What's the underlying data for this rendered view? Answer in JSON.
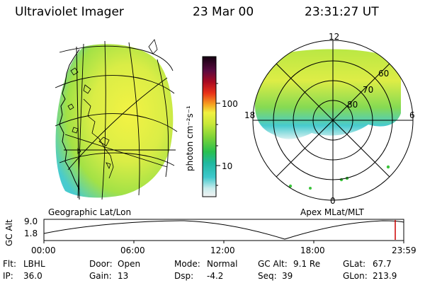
{
  "header": {
    "instrument": "Ultraviolet Imager",
    "date": "23 Mar 00",
    "time": "23:31:27 UT"
  },
  "colorbar": {
    "unit_label": "photon cm⁻²s⁻¹",
    "tick_labels": [
      "100",
      "10"
    ],
    "scale": "log"
  },
  "geographic_panel": {
    "caption": "Geographic Lat/Lon"
  },
  "apex_panel": {
    "caption": "Apex MLat/MLT",
    "mlt_labels": {
      "top": "12",
      "left": "18",
      "right": "6",
      "bottom": "0"
    },
    "mlat_labels": [
      "60",
      "70",
      "80"
    ]
  },
  "altitude_plot": {
    "ylabel": "GC Alt",
    "yticks": [
      "9.0",
      "1.8"
    ],
    "xticks": [
      "00:00",
      "06:00",
      "12:00",
      "18:00",
      "23:59"
    ]
  },
  "status": {
    "row1": [
      {
        "label": "Flt:",
        "value": "LBHL"
      },
      {
        "label": "Door:",
        "value": "Open"
      },
      {
        "label": "Mode:",
        "value": "Normal"
      },
      {
        "label": "GC Alt:",
        "value": "9.1 Re"
      },
      {
        "label": "GLat:",
        "value": "67.7"
      }
    ],
    "row2": [
      {
        "label": "IP:",
        "value": "36.0"
      },
      {
        "label": "Gain:",
        "value": "13"
      },
      {
        "label": "Dsp:",
        "value": "-4.2"
      },
      {
        "label": "Seq:",
        "value": "39"
      },
      {
        "label": "GLon:",
        "value": "213.9"
      }
    ]
  },
  "colors": {
    "auroral_yellow": "#d8ec3c",
    "auroral_green": "#3cc43c",
    "auroral_cyan": "#3ec8cc",
    "time_marker": "#cc0000"
  }
}
